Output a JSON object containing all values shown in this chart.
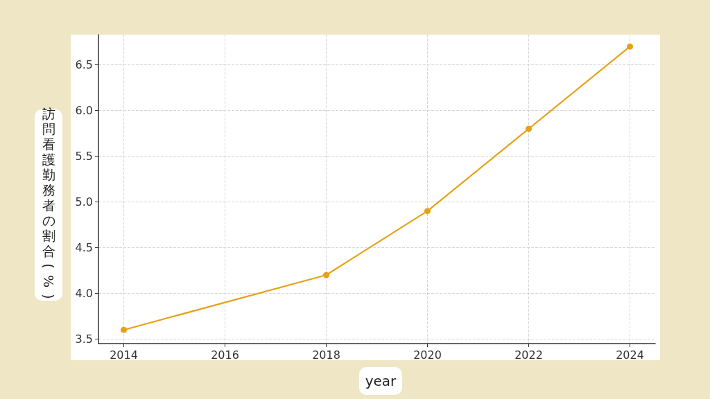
{
  "chart_data": {
    "type": "line",
    "xlabel": "year",
    "ylabel": "訪問看護勤務者の割合(%)",
    "x": [
      2014,
      2018,
      2020,
      2022,
      2024
    ],
    "series": [
      {
        "color": "#e6a117",
        "values": [
          3.6,
          4.2,
          4.9,
          5.8,
          6.7
        ]
      }
    ],
    "xlim": [
      2013.5,
      2024.5
    ],
    "xticks": [
      2014,
      2016,
      2018,
      2020,
      2022,
      2024
    ],
    "ylim": [
      3.45,
      6.83
    ],
    "yticks": [
      3.5,
      {
        "value": 4,
        "label": "4.0"
      },
      4.5,
      {
        "value": 5,
        "label": "5.0"
      },
      5.5,
      {
        "value": 6,
        "label": "6.0"
      },
      6.5
    ],
    "grid": true,
    "marker": "circle",
    "line_style": "solid"
  }
}
